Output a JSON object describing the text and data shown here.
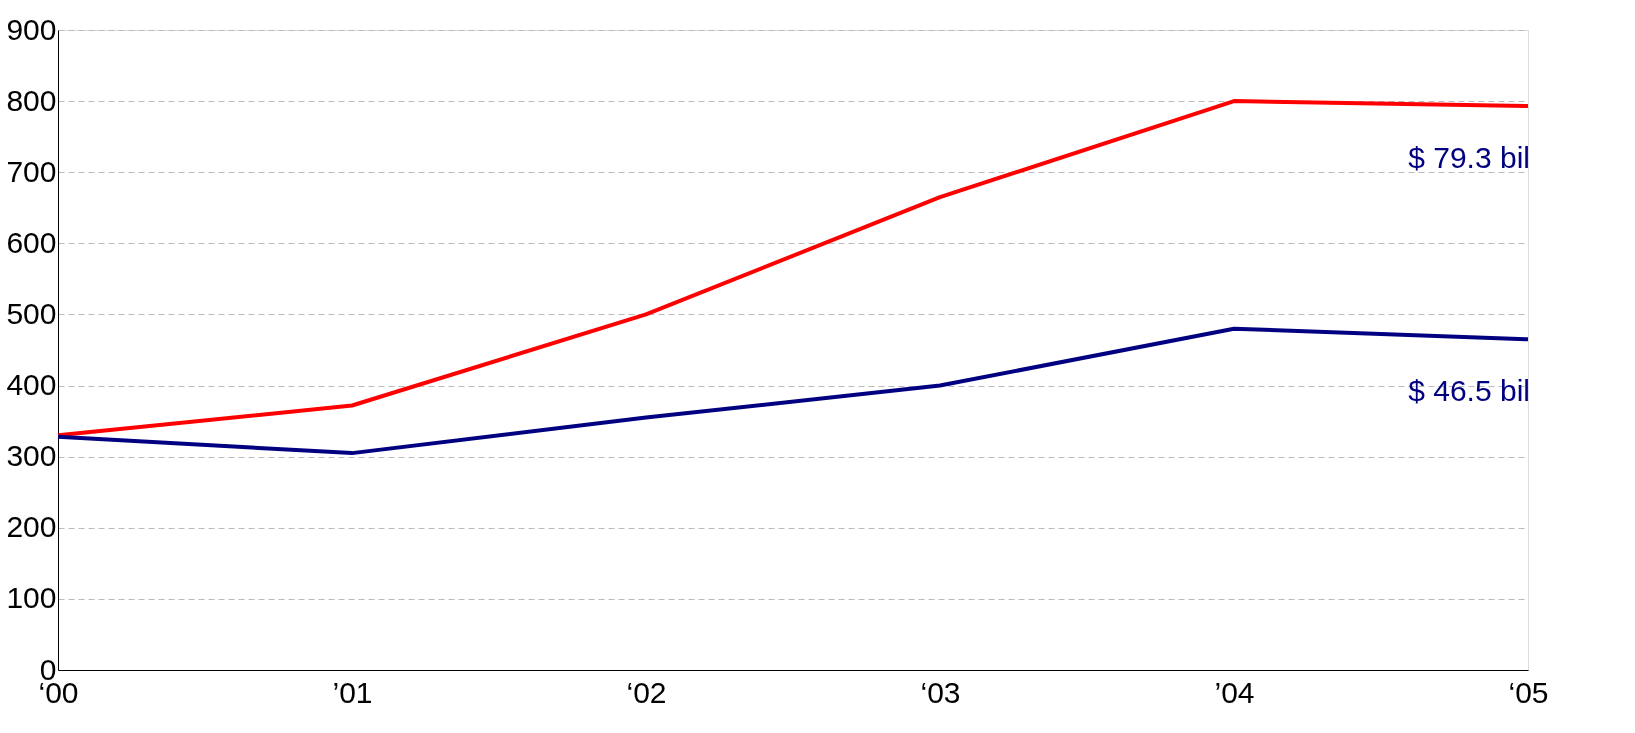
{
  "chart_data": {
    "type": "line",
    "categories": [
      "‘00",
      "’01",
      "‘02",
      "‘03",
      "’04",
      "‘05"
    ],
    "series": [
      {
        "color": "#ff0000",
        "values": [
          330,
          372,
          500,
          665,
          800,
          793
        ]
      },
      {
        "color": "#000080",
        "values": [
          328,
          305,
          355,
          400,
          480,
          465
        ]
      }
    ],
    "ylim": [
      0,
      900
    ],
    "yticks": [
      0,
      100,
      200,
      300,
      400,
      500,
      600,
      700,
      800,
      900
    ],
    "grid": "y",
    "marker": "none",
    "line_style": "solid",
    "annotations": [
      {
        "text": "$ 79.3 bil",
        "x": "‘05",
        "y": 793
      },
      {
        "text": "$ 46.5 bil",
        "x": "‘05",
        "y": 465
      }
    ]
  }
}
